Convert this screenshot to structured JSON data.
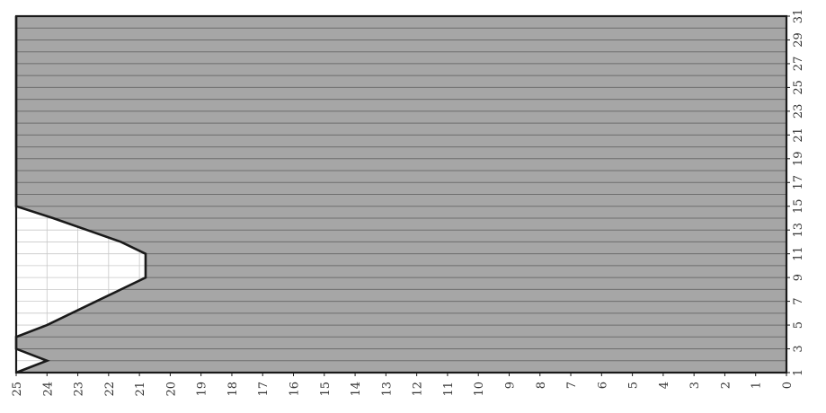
{
  "chart_data": {
    "type": "area",
    "title": "",
    "xlabel": "",
    "ylabel": "",
    "x_axis": {
      "reversed": true,
      "range": [
        0,
        25
      ],
      "ticks": [
        "25",
        "24",
        "23",
        "22",
        "21",
        "20",
        "19",
        "18",
        "17",
        "16",
        "15",
        "14",
        "13",
        "12",
        "11",
        "10",
        "9",
        "8",
        "7",
        "6",
        "5",
        "4",
        "3",
        "2",
        "1",
        "0"
      ]
    },
    "y_axis": {
      "position": "right",
      "range": [
        1,
        31
      ],
      "ticks": [
        "1",
        "3",
        "5",
        "7",
        "9",
        "11",
        "13",
        "15",
        "17",
        "19",
        "21",
        "23",
        "25",
        "27",
        "29",
        "31"
      ]
    },
    "grid": true,
    "series": [
      {
        "color": "#a6a6a6",
        "points": [
          {
            "y": 1,
            "x": 25
          },
          {
            "y": 2,
            "x": 24
          },
          {
            "y": 3,
            "x": 25
          },
          {
            "y": 4,
            "x": 25
          },
          {
            "y": 5,
            "x": 24
          },
          {
            "y": 6,
            "x": 23.2
          },
          {
            "y": 7,
            "x": 22.4
          },
          {
            "y": 8,
            "x": 21.6
          },
          {
            "y": 9,
            "x": 20.8
          },
          {
            "y": 10,
            "x": 20.8
          },
          {
            "y": 11,
            "x": 20.8
          },
          {
            "y": 12,
            "x": 21.6
          },
          {
            "y": 13,
            "x": 22.7
          },
          {
            "y": 14,
            "x": 23.8
          },
          {
            "y": 15,
            "x": 25
          },
          {
            "y": 16,
            "x": 25
          },
          {
            "y": 17,
            "x": 25
          },
          {
            "y": 18,
            "x": 25
          },
          {
            "y": 19,
            "x": 25
          },
          {
            "y": 20,
            "x": 25
          },
          {
            "y": 21,
            "x": 25
          },
          {
            "y": 22,
            "x": 25
          },
          {
            "y": 23,
            "x": 25
          },
          {
            "y": 24,
            "x": 25
          },
          {
            "y": 25,
            "x": 25
          },
          {
            "y": 26,
            "x": 25
          },
          {
            "y": 27,
            "x": 25
          },
          {
            "y": 28,
            "x": 25
          },
          {
            "y": 29,
            "x": 25
          },
          {
            "y": 30,
            "x": 25
          },
          {
            "y": 31,
            "x": 25
          }
        ]
      }
    ],
    "colors": {
      "fill": "#a6a6a6",
      "grid_light": "#c8c8c8",
      "grid_dark": "#6e6e6e",
      "outline": "#1a1a1a",
      "tick_text": "#333333"
    }
  }
}
